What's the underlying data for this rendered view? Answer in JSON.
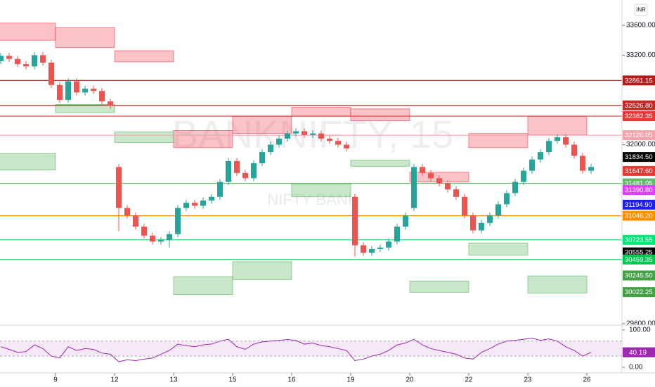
{
  "chart_data": {
    "type": "candlestick",
    "watermark": "BANKNIFTY, 15",
    "subtitle": "NIFTY BANK",
    "currency": "INR",
    "categories": [
      null,
      null,
      null,
      null,
      null,
      null,
      null,
      "9",
      null,
      null,
      null,
      null,
      null,
      null,
      "12",
      null,
      null,
      null,
      null,
      null,
      null,
      "13",
      null,
      null,
      null,
      null,
      null,
      null,
      "15",
      null,
      null,
      null,
      null,
      null,
      null,
      "16",
      null,
      null,
      null,
      null,
      null,
      null,
      "19",
      null,
      null,
      null,
      null,
      null,
      null,
      "20",
      null,
      null,
      null,
      null,
      null,
      null,
      "22",
      null,
      null,
      null,
      null,
      null,
      null,
      "23",
      null,
      null,
      null,
      null,
      null,
      null,
      "26"
    ],
    "open": [
      33120,
      33190,
      33150,
      33080,
      33050,
      33200,
      33100,
      32800,
      32600,
      32850,
      32700,
      32750,
      32720,
      32580,
      31700,
      31150,
      31050,
      30900,
      30780,
      30700,
      30720,
      30800,
      31150,
      31220,
      31180,
      31250,
      31300,
      31500,
      31780,
      31620,
      31550,
      31750,
      31900,
      32000,
      32080,
      32150,
      32180,
      32130,
      32150,
      32080,
      32050,
      32000,
      31300,
      30650,
      30550,
      30600,
      30620,
      30700,
      30900,
      31150,
      31700,
      31620,
      31550,
      31480,
      31400,
      31300,
      31050,
      30850,
      30950,
      31050,
      31200,
      31350,
      31500,
      31650,
      31800,
      31900,
      32050,
      32100,
      32000,
      31850,
      31650
    ],
    "high": [
      33230,
      33230,
      33190,
      33120,
      33240,
      33240,
      33140,
      32840,
      32890,
      32890,
      32790,
      32790,
      32760,
      32620,
      31740,
      31190,
      31090,
      30940,
      30820,
      30760,
      30840,
      31190,
      31260,
      31260,
      31290,
      31340,
      31540,
      31820,
      31820,
      31660,
      31790,
      31940,
      32040,
      32120,
      32190,
      32220,
      32220,
      32190,
      32190,
      32120,
      32090,
      32040,
      31340,
      30690,
      30640,
      30660,
      30740,
      30940,
      31090,
      31740,
      31740,
      31660,
      31590,
      31520,
      31440,
      31340,
      31090,
      30990,
      31090,
      31240,
      31390,
      31540,
      31690,
      31840,
      31940,
      32090,
      32140,
      32140,
      32040,
      31890,
      31740
    ],
    "low": [
      33080,
      33110,
      33040,
      33010,
      33010,
      33060,
      32760,
      32560,
      32560,
      32660,
      32660,
      32680,
      32540,
      32480,
      30840,
      31010,
      30860,
      30740,
      30660,
      30660,
      30620,
      30760,
      31110,
      31140,
      31140,
      31210,
      31260,
      31460,
      31580,
      31510,
      31510,
      31710,
      31860,
      31960,
      32040,
      32110,
      32090,
      32090,
      32040,
      32010,
      31960,
      31910,
      30500,
      30510,
      30510,
      30560,
      30580,
      30660,
      30860,
      31110,
      31580,
      31510,
      31440,
      31360,
      31260,
      31010,
      30810,
      30810,
      30910,
      31010,
      31160,
      31310,
      31460,
      31610,
      31760,
      31860,
      32010,
      31960,
      31810,
      31610,
      31610
    ],
    "close": [
      33190,
      33150,
      33080,
      33050,
      33200,
      33100,
      32800,
      32600,
      32850,
      32700,
      32750,
      32720,
      32580,
      32520,
      31150,
      31050,
      30900,
      30780,
      30700,
      30720,
      30800,
      31150,
      31220,
      31180,
      31250,
      31300,
      31500,
      31780,
      31620,
      31550,
      31750,
      31900,
      32000,
      32080,
      32150,
      32180,
      32130,
      32150,
      32080,
      32050,
      32000,
      31950,
      30650,
      30550,
      30600,
      30620,
      30700,
      30900,
      31050,
      31700,
      31620,
      31550,
      31480,
      31400,
      31300,
      31050,
      30850,
      30950,
      31050,
      31200,
      31350,
      31500,
      31650,
      31800,
      31900,
      32050,
      32100,
      32000,
      31850,
      31650,
      31700
    ],
    "up_color": "#26a69a",
    "down_color": "#ef5350",
    "ylim": [
      29580,
      33940
    ],
    "yticks": [
      {
        "value": 33600,
        "label": "33600.00"
      },
      {
        "value": 33200,
        "label": "33200.00"
      },
      {
        "value": 32000,
        "label": "32000.00"
      },
      {
        "value": 29600,
        "label": "29600.00"
      }
    ],
    "resistance_zones": [
      [
        33630,
        33400
      ],
      [
        33570,
        33300
      ],
      [
        33260,
        33110
      ],
      [
        32190,
        31960
      ],
      [
        32380,
        32150
      ],
      [
        32500,
        32380
      ],
      [
        32480,
        32320
      ],
      [
        31630,
        31500
      ],
      [
        32150,
        31960
      ],
      [
        32380,
        32130
      ]
    ],
    "support_zones": [
      [
        31880,
        31660
      ],
      [
        32540,
        32430
      ],
      [
        32170,
        32030
      ],
      [
        30230,
        29990
      ],
      [
        30430,
        30190
      ],
      [
        31470,
        31300
      ],
      [
        31790,
        31710
      ],
      [
        30170,
        30020
      ],
      [
        30680,
        30520
      ],
      [
        30240,
        30010
      ]
    ],
    "resistance_color": "#f23645",
    "support_color": "#4caf50",
    "levels": [
      {
        "value": 32861.15,
        "label": "32861.15",
        "color": "#b71c1c",
        "line": true
      },
      {
        "value": 32526.8,
        "label": "32526.80",
        "color": "#c62828",
        "line": true
      },
      {
        "value": 32382.35,
        "label": "32382.35",
        "color": "#e53935",
        "line": true
      },
      {
        "value": 32126.05,
        "label": "32126.05",
        "color": "#f5a3ab",
        "line": true
      },
      {
        "value": 31834.5,
        "label": "31834.50",
        "color": "#000000",
        "line": false
      },
      {
        "value": 31647.6,
        "label": "31647.60",
        "color": "#e53935",
        "line": false
      },
      {
        "value": 31481.05,
        "label": "31481.05",
        "color": "#66bb6a",
        "line": true
      },
      {
        "value": 31390.8,
        "label": "31390.80",
        "color": "#e040fb",
        "line": false
      },
      {
        "value": 31194.9,
        "label": "31194.90",
        "color": "#1e1ef0",
        "line": false
      },
      {
        "value": 31046.2,
        "label": "31046.20",
        "color": "#ff8f00",
        "line": true
      },
      {
        "value": 30723.55,
        "label": "30723.55",
        "color": "#00e676",
        "line": true
      },
      {
        "value": 30555.25,
        "label": "30555.25",
        "color": "#000000",
        "line": false
      },
      {
        "value": 30459.35,
        "label": "30459.35",
        "color": "#00c853",
        "line": true
      },
      {
        "value": 30245.5,
        "label": "30245.50",
        "color": "#43a047",
        "line": false
      },
      {
        "value": 30022.25,
        "label": "30022.25",
        "color": "#43a047",
        "line": false
      }
    ],
    "rsi": {
      "values": [
        55,
        48,
        40,
        42,
        60,
        50,
        30,
        25,
        55,
        45,
        50,
        48,
        38,
        35,
        15,
        20,
        18,
        22,
        25,
        35,
        45,
        62,
        58,
        55,
        60,
        62,
        70,
        75,
        55,
        48,
        62,
        68,
        70,
        72,
        74,
        72,
        62,
        65,
        58,
        55,
        50,
        45,
        18,
        22,
        30,
        35,
        45,
        60,
        65,
        75,
        60,
        50,
        45,
        40,
        35,
        25,
        22,
        40,
        50,
        62,
        70,
        72,
        75,
        78,
        72,
        76,
        70,
        55,
        45,
        30,
        40.19
      ],
      "color": "#9c27b0",
      "band": [
        30,
        70
      ],
      "ylim": [
        -15,
        111
      ],
      "yticks": [
        {
          "value": 100,
          "label": "100.00"
        },
        {
          "value": 0,
          "label": "0.00"
        }
      ]
    }
  }
}
